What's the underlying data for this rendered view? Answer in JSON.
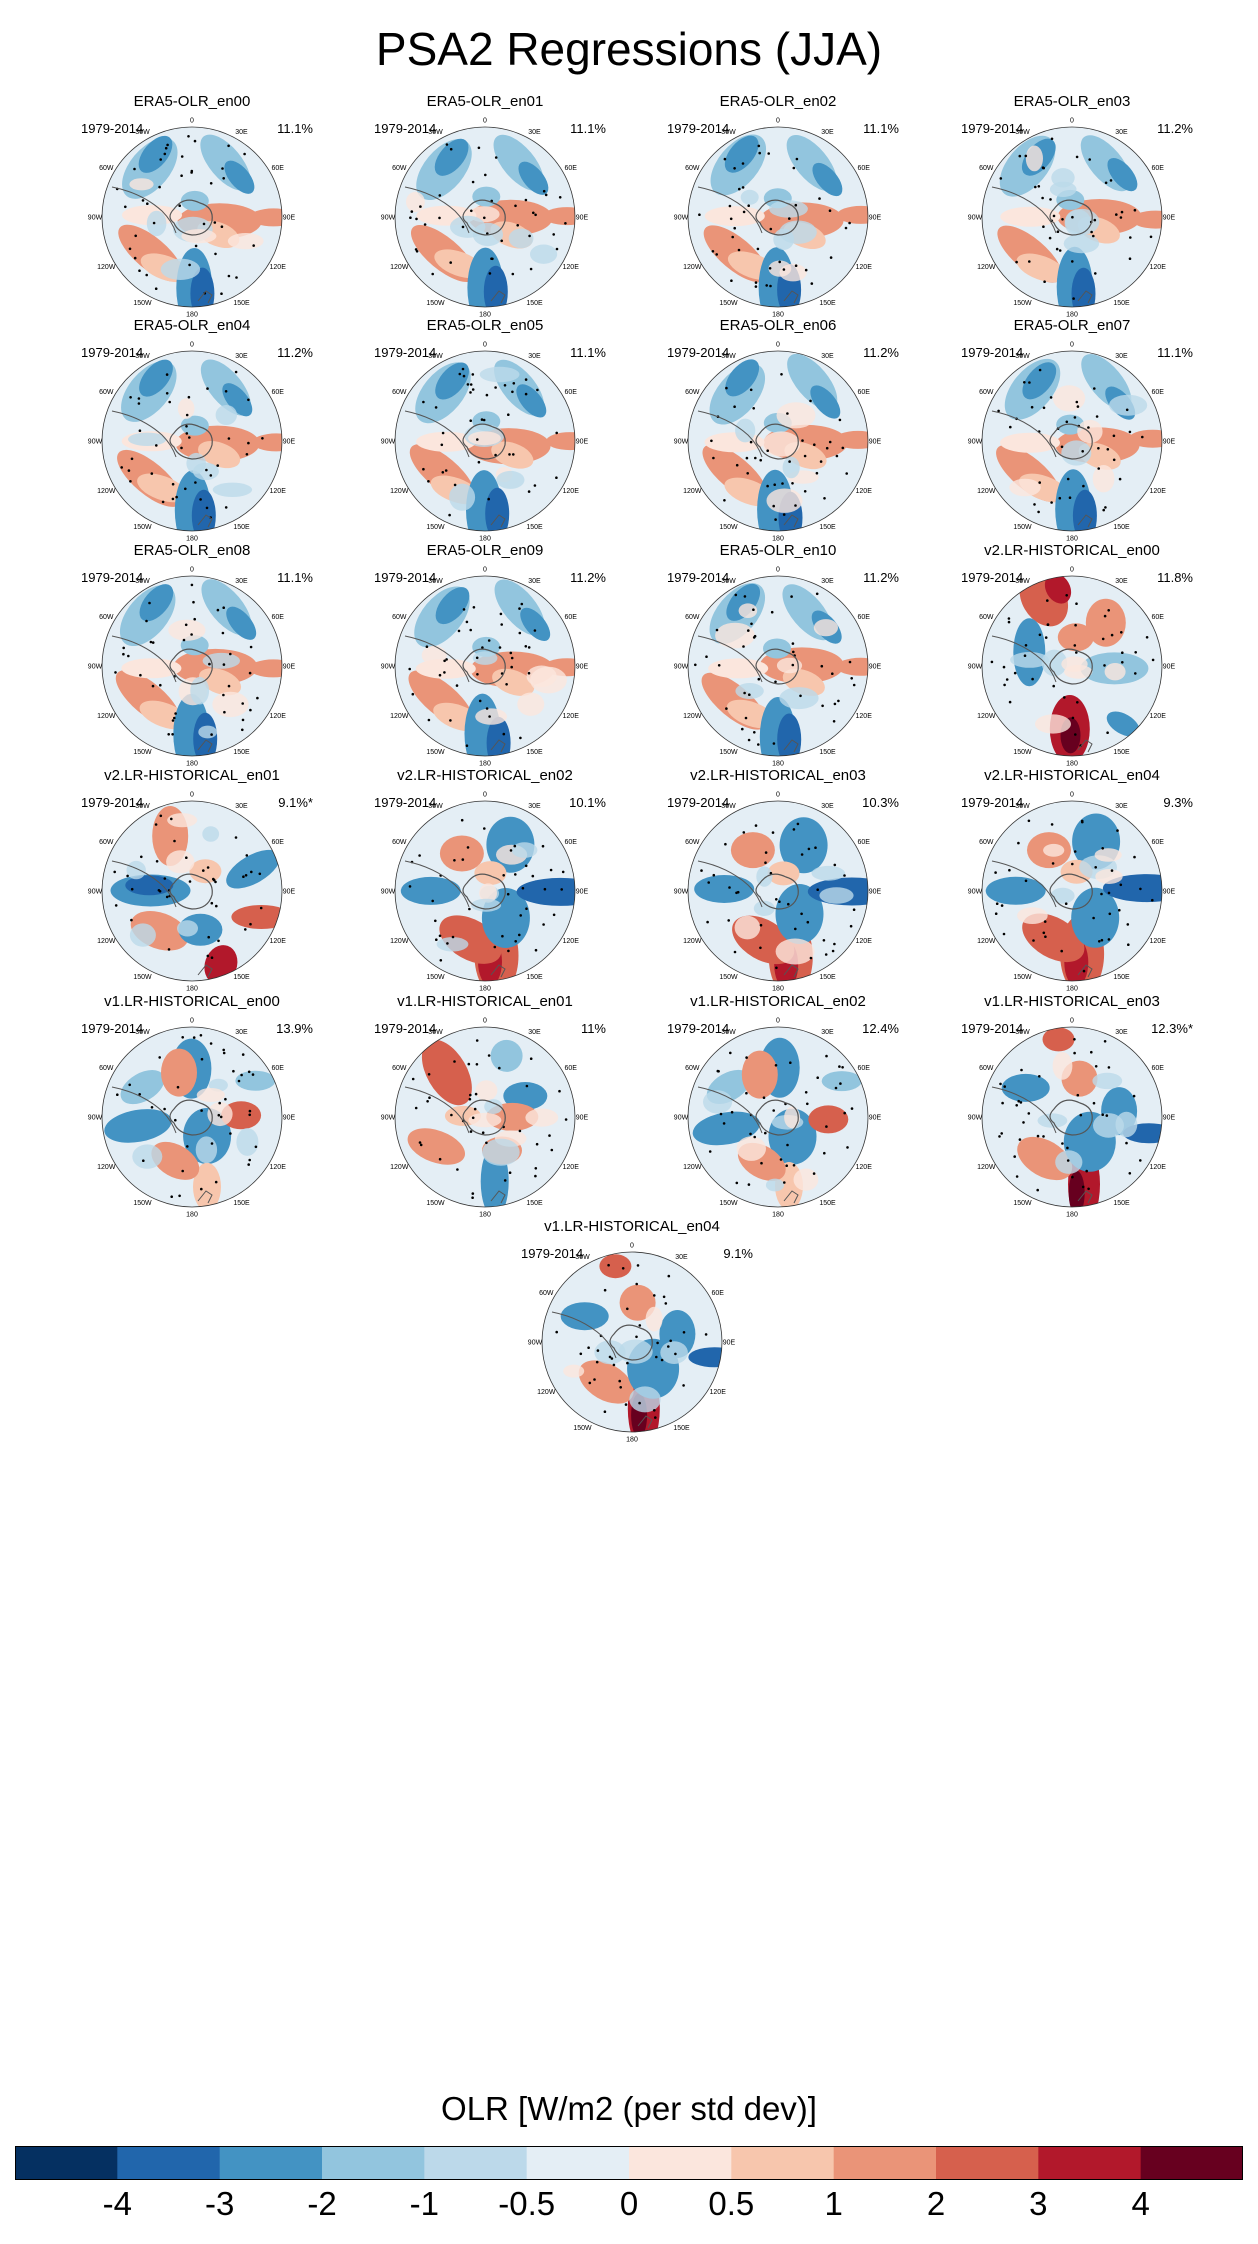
{
  "chart_data": {
    "type": "heatmap",
    "title": "PSA2 Regressions (JJA)",
    "colorbar": {
      "title": "OLR [W/m2 (per std dev)]",
      "levels": [
        "-4",
        "-3",
        "-2",
        "-1",
        "-0.5",
        "0",
        "0.5",
        "1",
        "2",
        "3",
        "4"
      ],
      "colors": [
        "#053061",
        "#2166ac",
        "#4393c3",
        "#92c5de",
        "#bcd9ea",
        "#e4eef5",
        "#fbe6dd",
        "#f7c6ad",
        "#ea9478",
        "#d6604d",
        "#b2182b",
        "#67001f"
      ]
    },
    "lon_labels": [
      "0",
      "30E",
      "60E",
      "90E",
      "120E",
      "150E",
      "180",
      "150W",
      "120W",
      "90W",
      "60W",
      "30W"
    ],
    "panels": [
      {
        "title": "ERA5-OLR_en00",
        "period": "1979-2014",
        "percent": "11.1%",
        "group": "era5"
      },
      {
        "title": "ERA5-OLR_en01",
        "period": "1979-2014",
        "percent": "11.1%",
        "group": "era5"
      },
      {
        "title": "ERA5-OLR_en02",
        "period": "1979-2014",
        "percent": "11.1%",
        "group": "era5"
      },
      {
        "title": "ERA5-OLR_en03",
        "period": "1979-2014",
        "percent": "11.2%",
        "group": "era5"
      },
      {
        "title": "ERA5-OLR_en04",
        "period": "1979-2014",
        "percent": "11.2%",
        "group": "era5"
      },
      {
        "title": "ERA5-OLR_en05",
        "period": "1979-2014",
        "percent": "11.1%",
        "group": "era5"
      },
      {
        "title": "ERA5-OLR_en06",
        "period": "1979-2014",
        "percent": "11.2%",
        "group": "era5"
      },
      {
        "title": "ERA5-OLR_en07",
        "period": "1979-2014",
        "percent": "11.1%",
        "group": "era5"
      },
      {
        "title": "ERA5-OLR_en08",
        "period": "1979-2014",
        "percent": "11.1%",
        "group": "era5"
      },
      {
        "title": "ERA5-OLR_en09",
        "period": "1979-2014",
        "percent": "11.2%",
        "group": "era5"
      },
      {
        "title": "ERA5-OLR_en10",
        "period": "1979-2014",
        "percent": "11.2%",
        "group": "era5"
      },
      {
        "title": "v2.LR-HISTORICAL_en00",
        "period": "1979-2014",
        "percent": "11.8%",
        "group": "v2a"
      },
      {
        "title": "v2.LR-HISTORICAL_en01",
        "period": "1979-2014",
        "percent": "9.1%*",
        "group": "v2b"
      },
      {
        "title": "v2.LR-HISTORICAL_en02",
        "period": "1979-2014",
        "percent": "10.1%",
        "group": "v2c"
      },
      {
        "title": "v2.LR-HISTORICAL_en03",
        "period": "1979-2014",
        "percent": "10.3%",
        "group": "v2c"
      },
      {
        "title": "v2.LR-HISTORICAL_en04",
        "period": "1979-2014",
        "percent": "9.3%",
        "group": "v2c"
      },
      {
        "title": "v1.LR-HISTORICAL_en00",
        "period": "1979-2014",
        "percent": "13.9%",
        "group": "v1a"
      },
      {
        "title": "v1.LR-HISTORICAL_en01",
        "period": "1979-2014",
        "percent": "11%",
        "group": "v1b"
      },
      {
        "title": "v1.LR-HISTORICAL_en02",
        "period": "1979-2014",
        "percent": "12.4%",
        "group": "v1a"
      },
      {
        "title": "v1.LR-HISTORICAL_en03",
        "period": "1979-2014",
        "percent": "12.3%*",
        "group": "v1c"
      },
      {
        "title": "v1.LR-HISTORICAL_en04",
        "period": "1979-2014",
        "percent": "9.1%",
        "group": "v1c"
      }
    ]
  }
}
